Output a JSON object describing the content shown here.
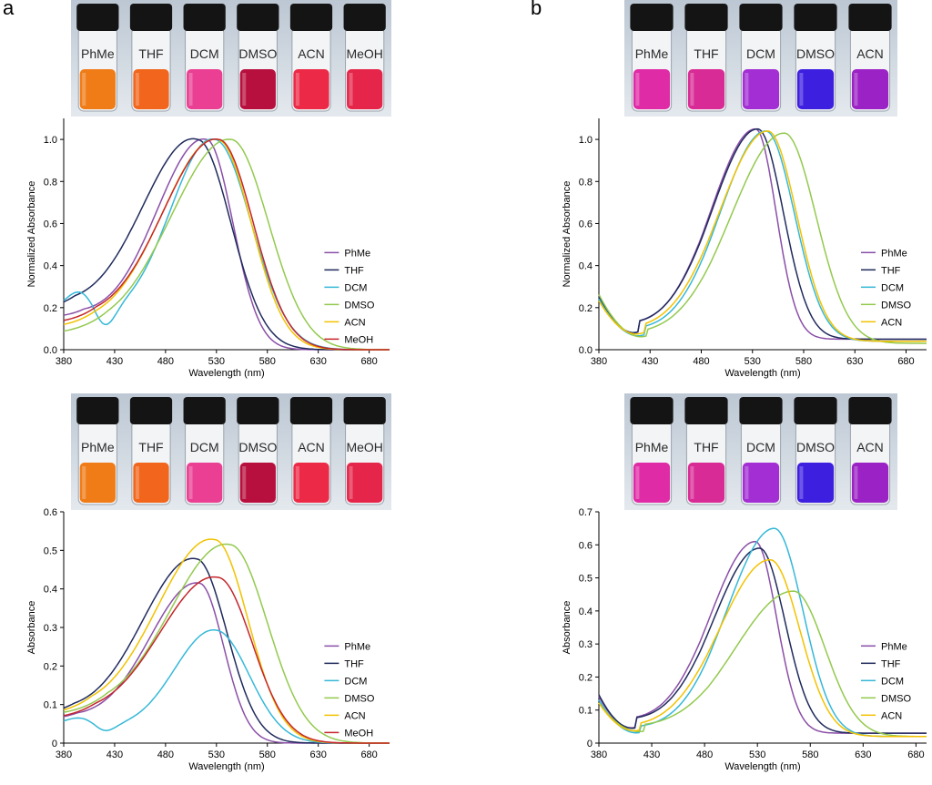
{
  "panel_labels": [
    "a",
    "b"
  ],
  "colors": {
    "PhMe": "#8a4fa8",
    "THF": "#1f2a5c",
    "DCM": "#35b8d8",
    "DMSO": "#93c94e",
    "ACN": "#f2c200",
    "MeOH": "#c4262b"
  },
  "photos": [
    {
      "vials": [
        {
          "label": "PhMe",
          "liquid": "#f07c18"
        },
        {
          "label": "THF",
          "liquid": "#f1661c"
        },
        {
          "label": "DCM",
          "liquid": "#ea3f93"
        },
        {
          "label": "DMSO",
          "liquid": "#b8103e"
        },
        {
          "label": "ACN",
          "liquid": "#ec2a47"
        },
        {
          "label": "MeOH",
          "liquid": "#e5264a"
        }
      ]
    },
    {
      "vials": [
        {
          "label": "PhMe",
          "liquid": "#e02ba6"
        },
        {
          "label": "THF",
          "liquid": "#d92b95"
        },
        {
          "label": "DCM",
          "liquid": "#a22ed4"
        },
        {
          "label": "DMSO",
          "liquid": "#3d1fe0"
        },
        {
          "label": "ACN",
          "liquid": "#9b22c4"
        }
      ]
    },
    {
      "vials": [
        {
          "label": "PhMe",
          "liquid": "#f07c18"
        },
        {
          "label": "THF",
          "liquid": "#f1661c"
        },
        {
          "label": "DCM",
          "liquid": "#ea3f93"
        },
        {
          "label": "DMSO",
          "liquid": "#b8103e"
        },
        {
          "label": "ACN",
          "liquid": "#ec2a47"
        },
        {
          "label": "MeOH",
          "liquid": "#e5264a"
        }
      ]
    },
    {
      "vials": [
        {
          "label": "PhMe",
          "liquid": "#e02ba6"
        },
        {
          "label": "THF",
          "liquid": "#d92b95"
        },
        {
          "label": "DCM",
          "liquid": "#a22ed4"
        },
        {
          "label": "DMSO",
          "liquid": "#3d1fe0"
        },
        {
          "label": "ACN",
          "liquid": "#9b22c4"
        }
      ]
    }
  ],
  "chart_data": [
    {
      "type": "line",
      "xlabel": "Wavelength (nm)",
      "ylabel": "Normalized Absorbance",
      "xlim": [
        380,
        700
      ],
      "ylim": [
        0,
        1.1
      ],
      "xticks": [
        380,
        430,
        480,
        530,
        580,
        630,
        680
      ],
      "yticks": [
        0,
        0.2,
        0.4,
        0.6,
        0.8,
        1.0
      ],
      "ytick_labels": [
        "0.0",
        "0.2",
        "0.4",
        "0.6",
        "0.8",
        "1.0"
      ],
      "legend": "right",
      "series": [
        {
          "name": "PhMe",
          "peak": 520,
          "peak_value": 1.0,
          "sigma_left": 48,
          "sigma_right": 26,
          "baseline": 0.15,
          "dip": 0
        },
        {
          "name": "THF",
          "peak": 511,
          "peak_value": 1.0,
          "sigma_left": 53,
          "sigma_right": 33,
          "baseline": 0.18,
          "dip": 0
        },
        {
          "name": "DCM",
          "peak": 528,
          "peak_value": 1.0,
          "sigma_left": 43,
          "sigma_right": 36,
          "baseline": 0.17,
          "dip": 0.1
        },
        {
          "name": "DMSO",
          "peak": 544,
          "peak_value": 1.0,
          "sigma_left": 58,
          "sigma_right": 37,
          "baseline": 0.07,
          "dip": 0
        },
        {
          "name": "ACN",
          "peak": 531,
          "peak_value": 1.0,
          "sigma_left": 54,
          "sigma_right": 33,
          "baseline": 0.1,
          "dip": 0
        },
        {
          "name": "MeOH",
          "peak": 532,
          "peak_value": 1.0,
          "sigma_left": 54,
          "sigma_right": 34,
          "baseline": 0.12,
          "dip": 0
        }
      ]
    },
    {
      "type": "line",
      "xlabel": "Wavelength (nm)",
      "ylabel": "Normalized Absorbance",
      "xlim": [
        380,
        700
      ],
      "ylim": [
        0,
        1.1
      ],
      "xticks": [
        380,
        430,
        480,
        530,
        580,
        630,
        680
      ],
      "yticks": [
        0,
        0.2,
        0.4,
        0.6,
        0.8,
        1.0
      ],
      "ytick_labels": [
        "0.0",
        "0.2",
        "0.4",
        "0.6",
        "0.8",
        "1.0"
      ],
      "legend": "right",
      "series": [
        {
          "name": "PhMe",
          "peak": 533,
          "peak_value": 1.0,
          "sigma_left": 44,
          "sigma_right": 20,
          "left_value": 0.26,
          "min_x": 420,
          "min_value": 0.05
        },
        {
          "name": "THF",
          "peak": 535,
          "peak_value": 1.0,
          "sigma_left": 45,
          "sigma_right": 25,
          "left_value": 0.25,
          "min_x": 420,
          "min_value": 0.05
        },
        {
          "name": "DCM",
          "peak": 543,
          "peak_value": 1.0,
          "sigma_left": 45,
          "sigma_right": 28,
          "left_value": 0.24,
          "min_x": 425,
          "min_value": 0.04
        },
        {
          "name": "DMSO",
          "peak": 561,
          "peak_value": 1.0,
          "sigma_left": 52,
          "sigma_right": 31,
          "left_value": 0.26,
          "min_x": 428,
          "min_value": 0.03
        },
        {
          "name": "ACN",
          "peak": 545,
          "peak_value": 1.0,
          "sigma_left": 48,
          "sigma_right": 28,
          "left_value": 0.23,
          "min_x": 425,
          "min_value": 0.04
        }
      ]
    },
    {
      "type": "line",
      "xlabel": "Wavelength (nm)",
      "ylabel": "Absorbance",
      "xlim": [
        380,
        700
      ],
      "ylim": [
        0,
        0.6
      ],
      "xticks": [
        380,
        430,
        480,
        530,
        580,
        630,
        680
      ],
      "yticks": [
        0,
        0.1,
        0.2,
        0.3,
        0.4,
        0.5,
        0.6
      ],
      "ytick_labels": [
        "0",
        "0.1",
        "0.2",
        "0.3",
        "0.4",
        "0.5",
        "0.6"
      ],
      "legend": "right",
      "series": [
        {
          "name": "PhMe",
          "peak": 513,
          "peak_value": 0.415,
          "sigma_left": 48,
          "sigma_right": 24,
          "baseline": 0.06,
          "dip": 0
        },
        {
          "name": "THF",
          "peak": 510,
          "peak_value": 0.478,
          "sigma_left": 52,
          "sigma_right": 30,
          "baseline": 0.07,
          "dip": 0
        },
        {
          "name": "DCM",
          "peak": 529,
          "peak_value": 0.293,
          "sigma_left": 40,
          "sigma_right": 33,
          "baseline": 0.045,
          "dip": 0.02
        },
        {
          "name": "DMSO",
          "peak": 543,
          "peak_value": 0.515,
          "sigma_left": 58,
          "sigma_right": 37,
          "baseline": 0.07,
          "dip": 0
        },
        {
          "name": "ACN",
          "peak": 528,
          "peak_value": 0.528,
          "sigma_left": 56,
          "sigma_right": 33,
          "baseline": 0.07,
          "dip": 0
        },
        {
          "name": "MeOH",
          "peak": 531,
          "peak_value": 0.43,
          "sigma_left": 56,
          "sigma_right": 34,
          "baseline": 0.06,
          "dip": 0
        }
      ]
    },
    {
      "type": "line",
      "xlabel": "Wavelength (nm)",
      "ylabel": "Absorbance",
      "xlim": [
        380,
        690
      ],
      "ylim": [
        0,
        0.7
      ],
      "xticks": [
        380,
        430,
        480,
        530,
        580,
        630,
        680
      ],
      "yticks": [
        0,
        0.1,
        0.2,
        0.3,
        0.4,
        0.5,
        0.6,
        0.7
      ],
      "ytick_labels": [
        "0",
        "0.1",
        "0.2",
        "0.3",
        "0.4",
        "0.5",
        "0.6",
        "0.7"
      ],
      "legend": "right",
      "series": [
        {
          "name": "PhMe",
          "peak": 528,
          "peak_value": 0.58,
          "sigma_left": 43,
          "sigma_right": 20,
          "left_value": 0.14,
          "min_x": 416,
          "min_value": 0.03
        },
        {
          "name": "THF",
          "peak": 532,
          "peak_value": 0.56,
          "sigma_left": 44,
          "sigma_right": 24,
          "left_value": 0.145,
          "min_x": 416,
          "min_value": 0.03
        },
        {
          "name": "DCM",
          "peak": 546,
          "peak_value": 0.63,
          "sigma_left": 45,
          "sigma_right": 27,
          "left_value": 0.13,
          "min_x": 420,
          "min_value": 0.02
        },
        {
          "name": "DMSO",
          "peak": 564,
          "peak_value": 0.44,
          "sigma_left": 55,
          "sigma_right": 30,
          "left_value": 0.12,
          "min_x": 424,
          "min_value": 0.02
        },
        {
          "name": "ACN",
          "peak": 542,
          "peak_value": 0.535,
          "sigma_left": 48,
          "sigma_right": 28,
          "left_value": 0.12,
          "min_x": 420,
          "min_value": 0.02
        }
      ]
    }
  ]
}
